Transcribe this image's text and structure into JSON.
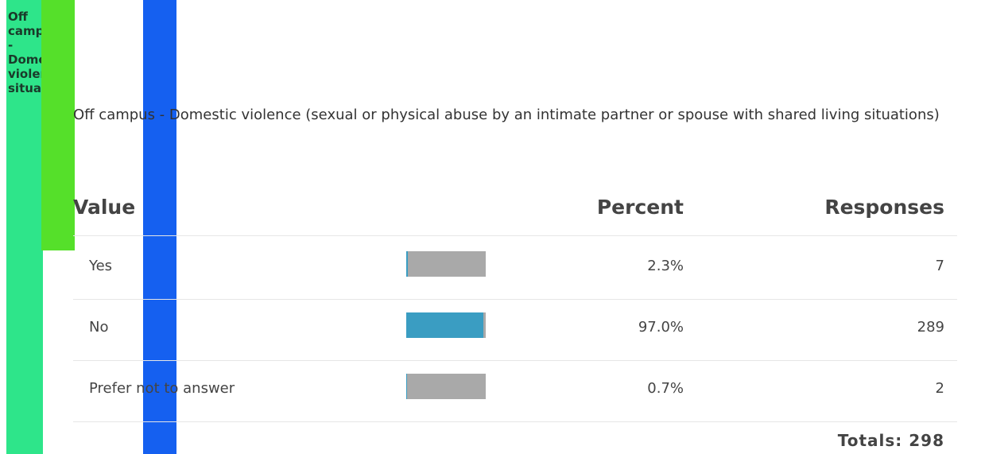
{
  "sidebar": {
    "text": "Off campus - Domestic violence situations"
  },
  "question": "Off campus - Domestic violence (sexual or physical abuse by an intimate partner or spouse with shared living situations)",
  "table": {
    "headers": [
      "Value",
      "Percent",
      "Responses"
    ],
    "rows": [
      {
        "value": "Yes",
        "percent": 2.3,
        "percent_label": "2.3%",
        "responses": 7
      },
      {
        "value": "No",
        "percent": 97.0,
        "percent_label": "97.0%",
        "responses": 289
      },
      {
        "value": "Prefer not to answer",
        "percent": 0.7,
        "percent_label": "0.7%",
        "responses": 2
      }
    ],
    "totals_label": "Totals:",
    "totals": 298
  }
}
